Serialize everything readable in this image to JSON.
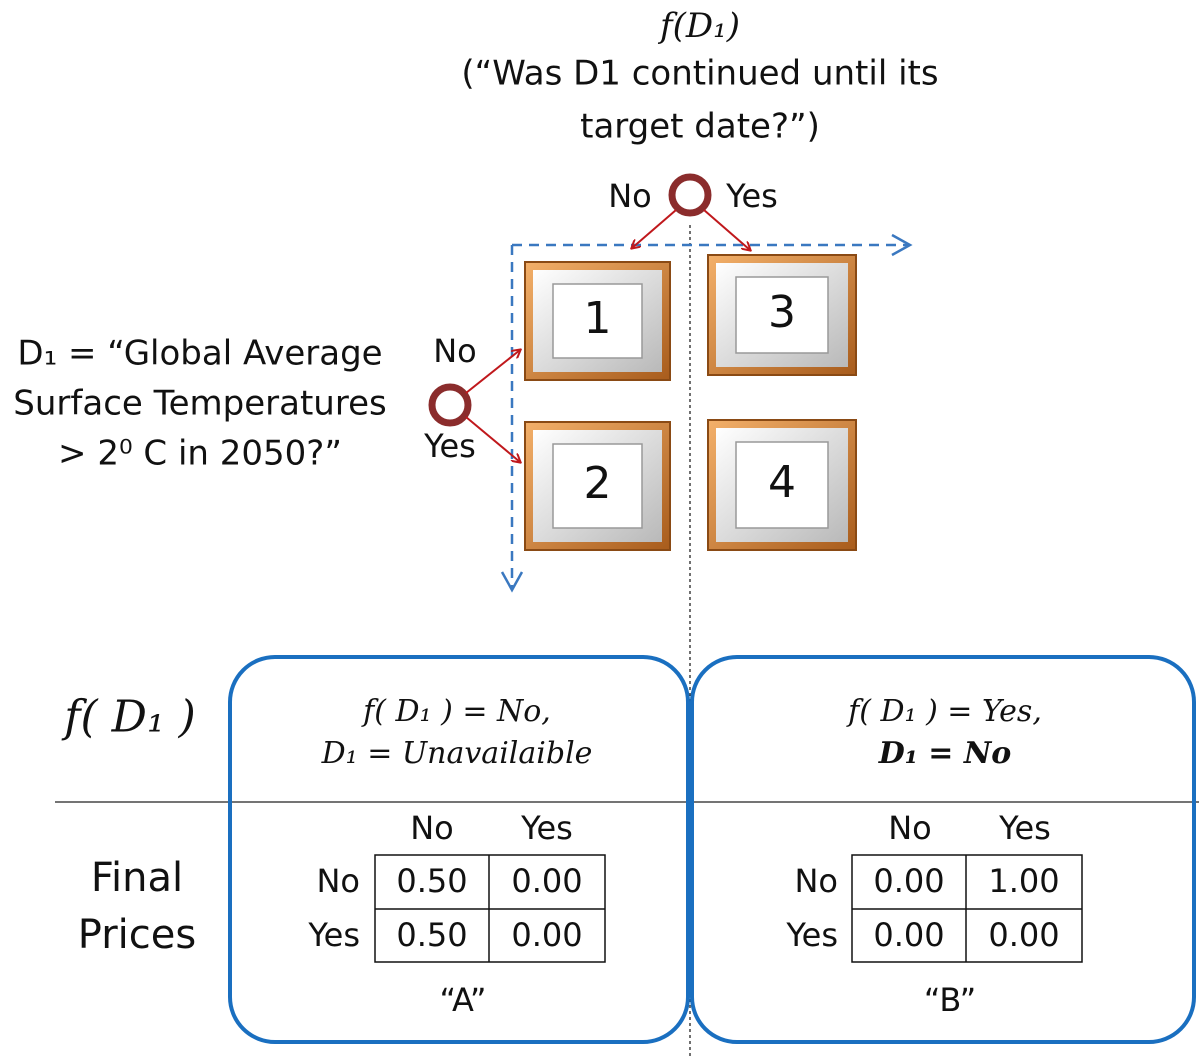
{
  "column_question": {
    "label": "f(D₁)",
    "lines": [
      "(“Was D1 continued until its",
      "target date?”)"
    ]
  },
  "column_options": [
    "No",
    "Yes"
  ],
  "row_question": {
    "lines": [
      "D₁ = “Global Average",
      "Surface Temperatures",
      "> 2⁰ C in 2050?”"
    ]
  },
  "row_options": [
    "No",
    "Yes"
  ],
  "cells": [
    [
      "1",
      "3"
    ],
    [
      "2",
      "4"
    ]
  ],
  "bottom": {
    "f_label": "f( D₁ )",
    "final_label": [
      "Final",
      "Prices"
    ]
  },
  "panels": [
    {
      "condition": [
        "f( D₁ ) = No,",
        "D₁ = Unavailaible"
      ],
      "second_line_color": "#222222",
      "col_headers": [
        "No",
        "Yes"
      ],
      "row_headers": [
        "No",
        "Yes"
      ],
      "prices": [
        [
          "0.50",
          "0.00"
        ],
        [
          "0.50",
          "0.00"
        ]
      ],
      "label": "“A”"
    },
    {
      "condition": [
        "f( D₁ ) = Yes,",
        "D₁ = No"
      ],
      "second_line_color": "#e8141b",
      "col_headers": [
        "No",
        "Yes"
      ],
      "row_headers": [
        "No",
        "Yes"
      ],
      "prices": [
        [
          "0.00",
          "1.00"
        ],
        [
          "0.00",
          "0.00"
        ]
      ],
      "label": "“B”"
    }
  ]
}
